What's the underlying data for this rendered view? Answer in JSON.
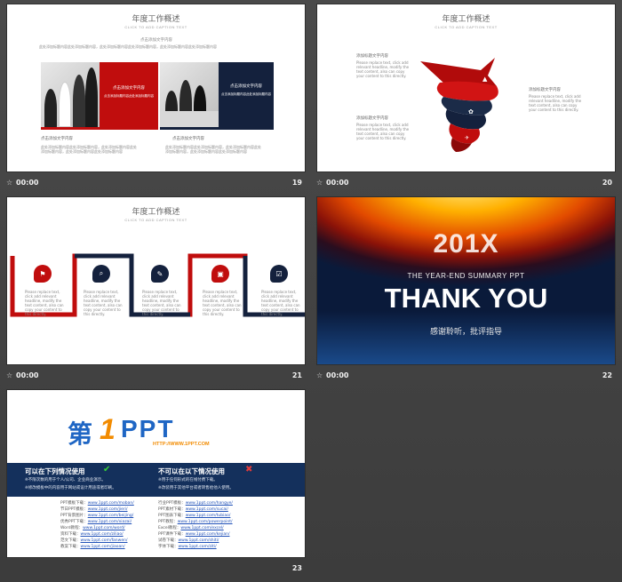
{
  "colors": {
    "accent_red": "#c00d0d",
    "navy": "#14213d",
    "bg": "#454545"
  },
  "slides": [
    {
      "number": "19",
      "duration": "00:00",
      "title": "年度工作概述",
      "subtitle": "CLICK TO ADD CAPTION TEXT",
      "header_text": "此处添加标题内容此处添加标题内容，此处添加标题内容此处添加标题内容，此处添加标题内容此处添加标题内容",
      "box_red_heading": "点击添加文字内容",
      "box_red_text": "点击添加标题内容此处添加标题内容",
      "box_top_label": "点击添加文字内容",
      "box_navy_heading": "点击添加文字内容",
      "box_navy_text": "点击添加标题内容此处添加标题内容",
      "footer_left": "点击添加文字内容",
      "footer_right": "点击添加文字内容"
    },
    {
      "number": "20",
      "duration": "00:00",
      "title": "年度工作概述",
      "subtitle": "CLICK TO ADD CAPTION TEXT",
      "label1": "添加标题文字内容",
      "label2": "添加标题文字内容",
      "label3": "添加标题文字内容",
      "body": "Please replace text, click add relevant headline, modify the text content, also can copy your content to this directly."
    },
    {
      "number": "21",
      "duration": "00:00",
      "title": "年度工作概述",
      "subtitle": "CLICK TO ADD CAPTION TEXT",
      "body": "Please replace text, click add relevant headline, modify the text content, also can copy your content to this directly.",
      "icons": [
        "flag-icon",
        "search-icon",
        "pencil-icon",
        "bus-icon",
        "checkbox-icon"
      ]
    },
    {
      "number": "22",
      "duration": "00:00",
      "year": "201X",
      "tagline": "THE YEAR-END  SUMMARY  PPT",
      "thanks": "THANK YOU",
      "chinese": "感谢聆听，批评指导"
    },
    {
      "number": "23",
      "duration": "",
      "logo_cn": "第",
      "logo_one": "1",
      "logo_ppt": "PPT",
      "logo_url": "HTTP://WWW.1PPT.COM",
      "can_use": "可以在下列情况使用",
      "cannot_use": "不可以在以下情况使用",
      "can_items": [
        "※不限次数的用于个人/公司、企业商业演示。",
        "※修改模板中的内容用于网站或设计用途或者印刷。"
      ],
      "cannot_items": [
        "※用于任何形式的在线付费下载。",
        "※改装用于其他平台或者转售给他人使用。"
      ],
      "links_left": [
        [
          "PPT模板下载：",
          "www.1ppt.com/moban/"
        ],
        [
          "节日PPT模板：",
          "www.1ppt.com/jieri/"
        ],
        [
          "PPT背景图片：",
          "www.1ppt.com/beijing/"
        ],
        [
          "优秀PPT下载：",
          "www.1ppt.com/xiazai/"
        ],
        [
          "Word教程：",
          "www.1ppt.com/word/"
        ],
        [
          "资料下载：",
          "www.1ppt.com/ziliao/"
        ],
        [
          "范文下载：",
          "www.1ppt.com/fanwen/"
        ],
        [
          "教案下载：",
          "www.1ppt.com/jiaoan/"
        ]
      ],
      "links_right": [
        [
          "行业PPT模板：",
          "www.1ppt.com/hangye/"
        ],
        [
          "PPT素材下载：",
          "www.1ppt.com/sucai/"
        ],
        [
          "PPT图表下载：",
          "www.1ppt.com/tubiao/"
        ],
        [
          "PPT教程：",
          "www.1ppt.com/powerpoint/"
        ],
        [
          "Excel教程：",
          "www.1ppt.com/excel/"
        ],
        [
          "PPT课件下载：",
          "www.1ppt.com/kejian/"
        ],
        [
          "试卷下载：",
          "www.1ppt.com/shiti/"
        ],
        [
          "字体下载：",
          "www.1ppt.com/ziti/"
        ]
      ]
    }
  ]
}
